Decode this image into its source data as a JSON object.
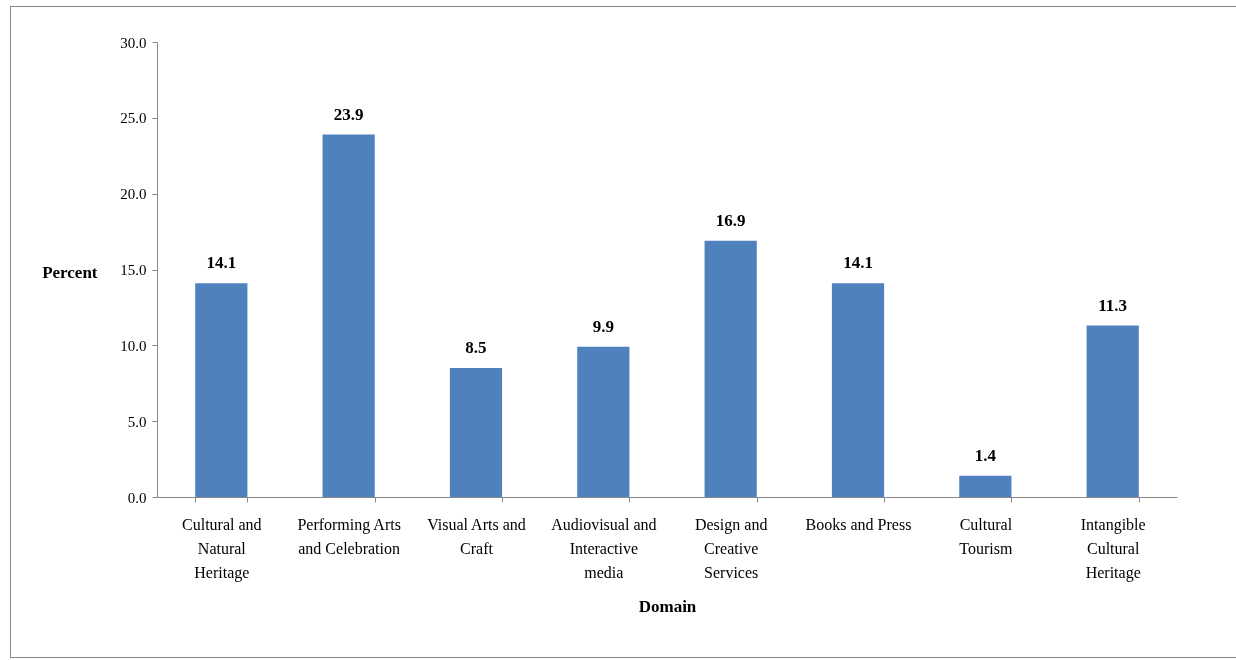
{
  "chart_data": {
    "type": "bar",
    "xlabel": "Domain",
    "ylabel": "Percent",
    "categories": [
      "Cultural and Natural Heritage",
      "Performing Arts and Celebration",
      "Visual Arts and Craft",
      "Audiovisual and Interactive media",
      "Design and Creative Services",
      "Books and Press",
      "Cultural Tourism",
      "Intangible Cultural Heritage"
    ],
    "values": [
      14.1,
      23.9,
      8.5,
      9.9,
      16.9,
      14.1,
      1.4,
      11.3
    ],
    "color": "#4f81bd",
    "ylim": [
      0,
      30
    ],
    "yticks": [
      {
        "value": 0,
        "label": "0.0"
      },
      {
        "value": 5,
        "label": "5.0"
      },
      {
        "value": 10,
        "label": "10.0"
      },
      {
        "value": 15,
        "label": "15.0"
      },
      {
        "value": 20,
        "label": "20.0"
      },
      {
        "value": 25,
        "label": "25.0"
      },
      {
        "value": 30,
        "label": "30.0"
      }
    ],
    "data_labels": true,
    "grid": false
  }
}
